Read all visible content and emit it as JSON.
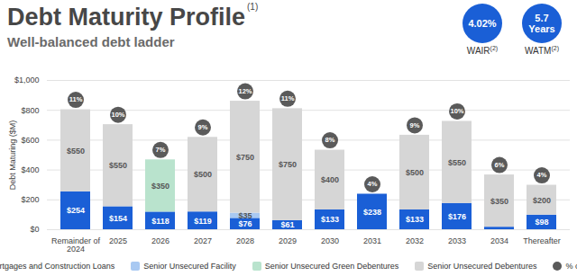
{
  "chart_data": {
    "type": "bar",
    "stacked": true,
    "title": "Debt Maturity Profile",
    "title_note": "(1)",
    "subtitle": "Well-balanced debt ladder",
    "annotations": [
      {
        "text": "4.02%",
        "label": "WAIR",
        "note": "(2)"
      },
      {
        "text": "5.7 Years",
        "label": "WATM",
        "note": "(2)"
      }
    ],
    "y_label": "Debt Maturing ($M)",
    "categories": [
      "Remainder of 2024",
      "2025",
      "2026",
      "2027",
      "2028",
      "2029",
      "2030",
      "2031",
      "2032",
      "2033",
      "2034",
      "Thereafter"
    ],
    "series": [
      {
        "name": "Mortgages and Construction Loans",
        "type": "bar",
        "color": "#1a5fd6",
        "values": [
          254,
          154,
          118,
          119,
          76,
          61,
          133,
          238,
          133,
          176,
          17,
          98
        ],
        "value_labels": [
          "$254",
          "$154",
          "$118",
          "$119",
          "$76",
          "$61",
          "$133",
          "$238",
          "$133",
          "$176",
          null,
          "$98"
        ]
      },
      {
        "name": "Senior Unsecured Facility",
        "type": "bar",
        "color": "#a9c9f2",
        "values": [
          0,
          0,
          0,
          0,
          35,
          0,
          0,
          0,
          0,
          0,
          0,
          0
        ],
        "value_labels": [
          null,
          null,
          null,
          null,
          "$35",
          null,
          null,
          null,
          null,
          null,
          null,
          null
        ]
      },
      {
        "name": "Senior Unsecured Green Debentures",
        "type": "bar",
        "color": "#b9e3cd",
        "values": [
          0,
          0,
          350,
          0,
          0,
          0,
          0,
          0,
          0,
          0,
          0,
          0
        ],
        "value_labels": [
          null,
          null,
          "$350",
          null,
          null,
          null,
          null,
          null,
          null,
          null,
          null,
          null
        ]
      },
      {
        "name": "Senior Unsecured Debentures",
        "type": "bar",
        "color": "#d6d6d6",
        "values": [
          550,
          550,
          0,
          500,
          750,
          750,
          400,
          0,
          500,
          550,
          350,
          200
        ],
        "value_labels": [
          "$550",
          "$550",
          null,
          "$500",
          "$750",
          "$750",
          "$400",
          null,
          "$500",
          "$550",
          "$350",
          "$200"
        ]
      },
      {
        "name": "% of Debt",
        "type": "dot",
        "color": "#5a5a5a",
        "values": [
          11,
          10,
          7,
          9,
          12,
          11,
          8,
          4,
          9,
          10,
          6,
          4
        ],
        "value_labels": [
          "11%",
          "10%",
          "7%",
          "9%",
          "12%",
          "11%",
          "8%",
          "4%",
          "9%",
          "10%",
          "6%",
          "4%"
        ]
      }
    ],
    "ylim": [
      0,
      1000
    ],
    "yticks": [
      {
        "value": 0,
        "label": "$0"
      },
      {
        "value": 200,
        "label": "$200"
      },
      {
        "value": 400,
        "label": "$400"
      },
      {
        "value": 600,
        "label": "$600"
      },
      {
        "value": 800,
        "label": "$800"
      },
      {
        "value": 1000,
        "label": "$1,000"
      }
    ],
    "grid": true,
    "data_labels": true,
    "legend": "bottom"
  }
}
